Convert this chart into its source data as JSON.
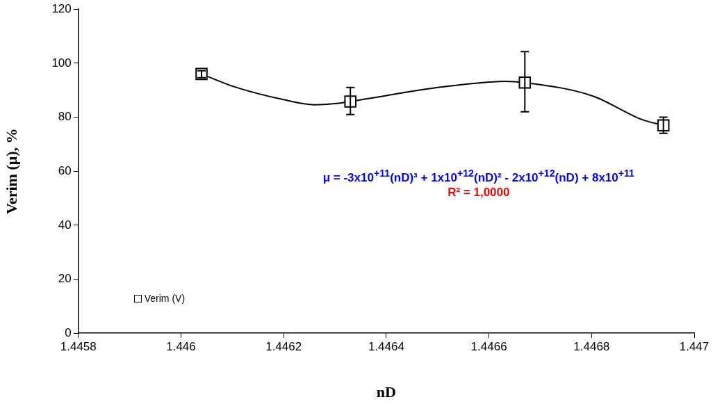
{
  "chart_data": {
    "type": "scatter",
    "xlabel": "nD",
    "ylabel": "Verim (μ), %",
    "xlim": [
      1.4458,
      1.447
    ],
    "xticks": [
      1.4458,
      1.446,
      1.4462,
      1.4464,
      1.4466,
      1.4468,
      1.447
    ],
    "ylim": [
      0,
      120
    ],
    "yticks": [
      0,
      20,
      40,
      60,
      80,
      100,
      120
    ],
    "grid": false,
    "legend": "bottom left",
    "series": [
      {
        "name": "Verim (V)",
        "marker": "square",
        "color": "#000000",
        "x": [
          1.44604,
          1.44633,
          1.44667,
          1.44694
        ],
        "values": [
          96,
          85.8,
          92.8,
          77
        ],
        "errors": [
          [
            94.6,
            97.2
          ],
          [
            81,
            91
          ],
          [
            82,
            104.3
          ],
          [
            74,
            80
          ]
        ]
      },
      {
        "type": "line",
        "marker": "none",
        "line_style": "solid",
        "color": "#000000",
        "x": [
          1.44604,
          1.4461,
          1.4462,
          1.44626,
          1.4463,
          1.44633,
          1.4464,
          1.4465,
          1.4466,
          1.44663,
          1.44667,
          1.4468,
          1.4469,
          1.44694
        ],
        "values": [
          96,
          91.5,
          86.5,
          84.6,
          85,
          85.8,
          88,
          91,
          93,
          93.3,
          92.8,
          88,
          79,
          77
        ]
      }
    ],
    "annotations": [
      "μ = -3x10$^{+11}$(nD)³ + 1x10$^{+12}$(nD)² - 2x10$^{+12}$(nD) + 8x10$^{+11}$",
      "R² = 1,0000"
    ]
  }
}
